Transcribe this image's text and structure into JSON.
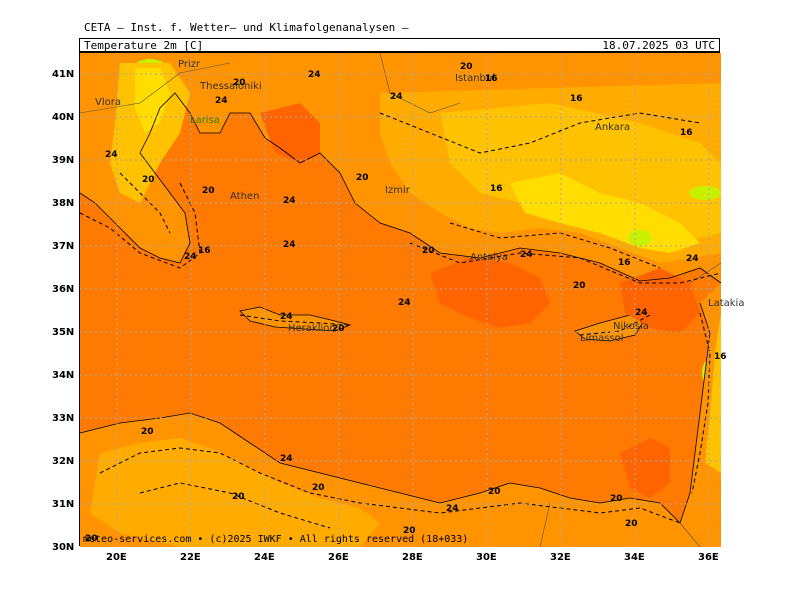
{
  "header": {
    "institution": "CETA – Inst. f. Wetter– und Klimafolgenanalysen –",
    "product": "Temperature 2m [C]",
    "valid": "18.07.2025 03 UTC"
  },
  "map": {
    "lat_labels": [
      "41N",
      "40N",
      "39N",
      "38N",
      "37N",
      "36N",
      "35N",
      "34N",
      "33N",
      "32N",
      "31N",
      "30N"
    ],
    "lon_labels": [
      "20E",
      "22E",
      "24E",
      "26E",
      "28E",
      "30E",
      "32E",
      "34E",
      "36E"
    ],
    "cities": [
      "Prizr",
      "Thessaloniki",
      "Vlora",
      "Athen",
      "Izmir",
      "Istanbul",
      "Ankara",
      "Antalya",
      "Heraklion",
      "Nikosia",
      "Limassol",
      "Latakia",
      "Larisa"
    ],
    "contour_labels": [
      "24",
      "20",
      "16",
      "24",
      "20",
      "16",
      "24",
      "20",
      "24",
      "16",
      "20",
      "24",
      "16",
      "20",
      "24",
      "24",
      "20",
      "16",
      "24",
      "24",
      "20",
      "20",
      "24",
      "20",
      "24",
      "24",
      "16",
      "20",
      "20",
      "16",
      "24",
      "20",
      "20",
      "24",
      "20",
      "20",
      "20"
    ],
    "colors": {
      "sea": "#ff7a00",
      "warm_land": "#ff9400",
      "mild_land": "#ffab00",
      "cool_land": "#ffc200",
      "cold_land": "#ffdd00",
      "very_cold": "#c8f000",
      "warm_spot": "#ff6400",
      "grid": "#a8a8a8",
      "contour": "#000000"
    }
  },
  "credit": "meteo-services.com • (c)2025 IWKF • All rights reserved (18+033)"
}
